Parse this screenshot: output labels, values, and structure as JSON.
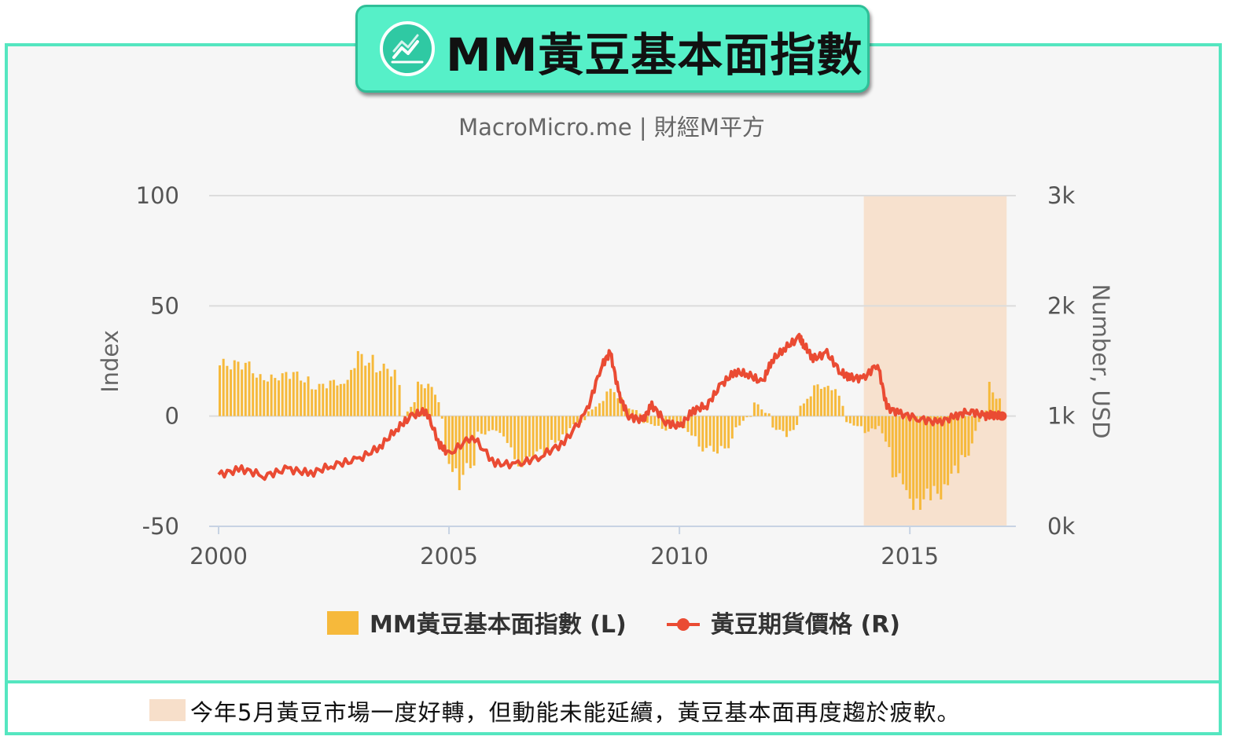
{
  "banner": {
    "title": "MM黃豆基本面指數",
    "icon": "line-chart-icon"
  },
  "footer": {
    "note": "今年5月黃豆市場一度好轉，但動能未能延續，黃豆基本面再度趨於疲軟。",
    "swatch_color": "#f7dfca"
  },
  "chart_data": {
    "type": "bar+line",
    "subtitle": "MacroMicro.me | 財經M平方",
    "y_left": {
      "label": "Index",
      "ticks": [
        "100",
        "50",
        "0",
        "-50"
      ],
      "range": [
        -50,
        100
      ]
    },
    "y_right": {
      "label": "Number, USD",
      "ticks": [
        "3k",
        "2k",
        "1k",
        "0k"
      ],
      "range": [
        0,
        3000
      ]
    },
    "x": {
      "ticks": [
        "2000",
        "2005",
        "2010",
        "2015"
      ],
      "range": [
        2000,
        2017.3
      ]
    },
    "highlight": {
      "from": 2014.0,
      "to": 2017.1,
      "color": "#f7dfca"
    },
    "legend": [
      {
        "label": "MM黃豆基本面指數 (L)",
        "color": "#f6b93b",
        "kind": "bar"
      },
      {
        "label": "黃豆期貨價格 (R)",
        "color": "#ea4b33",
        "kind": "line"
      }
    ],
    "series": [
      {
        "name": "MM黃豆基本面指數 (L)",
        "axis": "left",
        "x": [
          2000.0,
          2000.4,
          2000.8,
          2001.2,
          2001.6,
          2002.0,
          2002.4,
          2002.7,
          2003.0,
          2003.4,
          2003.8,
          2004.0,
          2004.3,
          2004.6,
          2004.9,
          2005.2,
          2005.6,
          2006.0,
          2006.4,
          2006.8,
          2007.2,
          2007.6,
          2008.0,
          2008.4,
          2008.8,
          2009.2,
          2009.6,
          2010.0,
          2010.4,
          2010.8,
          2011.2,
          2011.6,
          2012.0,
          2012.3,
          2012.6,
          2012.9,
          2013.2,
          2013.6,
          2014.0,
          2014.3,
          2014.6,
          2014.9,
          2015.2,
          2015.5,
          2015.8,
          2016.1,
          2016.4,
          2016.7,
          2017.0
        ],
        "values": [
          23,
          25,
          17,
          18,
          19,
          13,
          15,
          16,
          27,
          22,
          19,
          0,
          14,
          15,
          -20,
          -30,
          -8,
          -6,
          -22,
          -18,
          -12,
          -5,
          2,
          12,
          5,
          -3,
          -6,
          -5,
          -14,
          -17,
          -5,
          6,
          -5,
          -10,
          5,
          13,
          15,
          -3,
          -7,
          -5,
          -25,
          -38,
          -38,
          -36,
          -28,
          -20,
          -6,
          14,
          -2
        ]
      },
      {
        "name": "黃豆期貨價格 (R)",
        "axis": "right",
        "x": [
          2000.0,
          2000.5,
          2001.0,
          2001.5,
          2002.0,
          2002.5,
          2003.0,
          2003.5,
          2003.9,
          2004.2,
          2004.5,
          2004.8,
          2005.0,
          2005.5,
          2006.0,
          2006.5,
          2007.0,
          2007.5,
          2008.0,
          2008.3,
          2008.5,
          2008.7,
          2008.9,
          2009.2,
          2009.4,
          2009.7,
          2010.0,
          2010.3,
          2010.6,
          2010.9,
          2011.2,
          2011.5,
          2011.8,
          2012.0,
          2012.3,
          2012.6,
          2012.7,
          2012.9,
          2013.2,
          2013.5,
          2013.7,
          2014.0,
          2014.3,
          2014.5,
          2014.8,
          2015.2,
          2015.6,
          2016.0,
          2016.3,
          2016.6,
          2016.8,
          2017.0
        ],
        "values": [
          470,
          520,
          460,
          520,
          480,
          560,
          600,
          720,
          900,
          1000,
          1050,
          740,
          650,
          820,
          570,
          560,
          640,
          760,
          1050,
          1450,
          1580,
          1180,
          1000,
          960,
          1100,
          950,
          900,
          1050,
          1100,
          1280,
          1400,
          1380,
          1300,
          1500,
          1620,
          1710,
          1650,
          1520,
          1570,
          1400,
          1350,
          1340,
          1480,
          1080,
          1020,
          980,
          940,
          1000,
          1050,
          1000,
          1010,
          1000
        ]
      }
    ]
  }
}
